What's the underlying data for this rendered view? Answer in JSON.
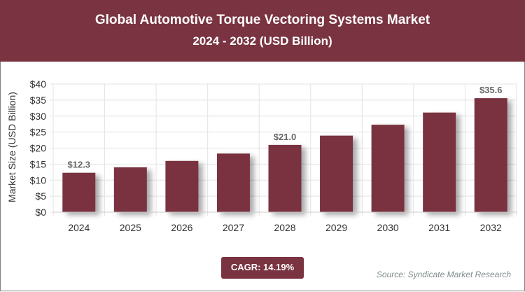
{
  "header": {
    "title": "Global Automotive Torque Vectoring Systems Market",
    "subtitle": "2024 - 2032 (USD Billion)"
  },
  "chart_data": {
    "type": "bar",
    "title": "Global Automotive Torque Vectoring Systems Market",
    "subtitle": "2024 - 2032 (USD Billion)",
    "xlabel": "",
    "ylabel": "Market Size (USD Billion)",
    "categories": [
      "2024",
      "2025",
      "2026",
      "2027",
      "2028",
      "2029",
      "2030",
      "2031",
      "2032"
    ],
    "values": [
      12.3,
      14.0,
      16.0,
      18.3,
      21.0,
      23.9,
      27.3,
      31.1,
      35.6
    ],
    "data_labels": {
      "0": "$12.3",
      "4": "$21.0",
      "8": "$35.6"
    },
    "ylim": [
      0,
      40
    ],
    "yticks": [
      "$0",
      "$5",
      "$10",
      "$15",
      "$20",
      "$25",
      "$30",
      "$35",
      "$40"
    ],
    "grid": true,
    "bar_color": "#7a3340"
  },
  "footer": {
    "cagr": "CAGR: 14.19%",
    "source": "Source: Syndicate Market Research"
  }
}
